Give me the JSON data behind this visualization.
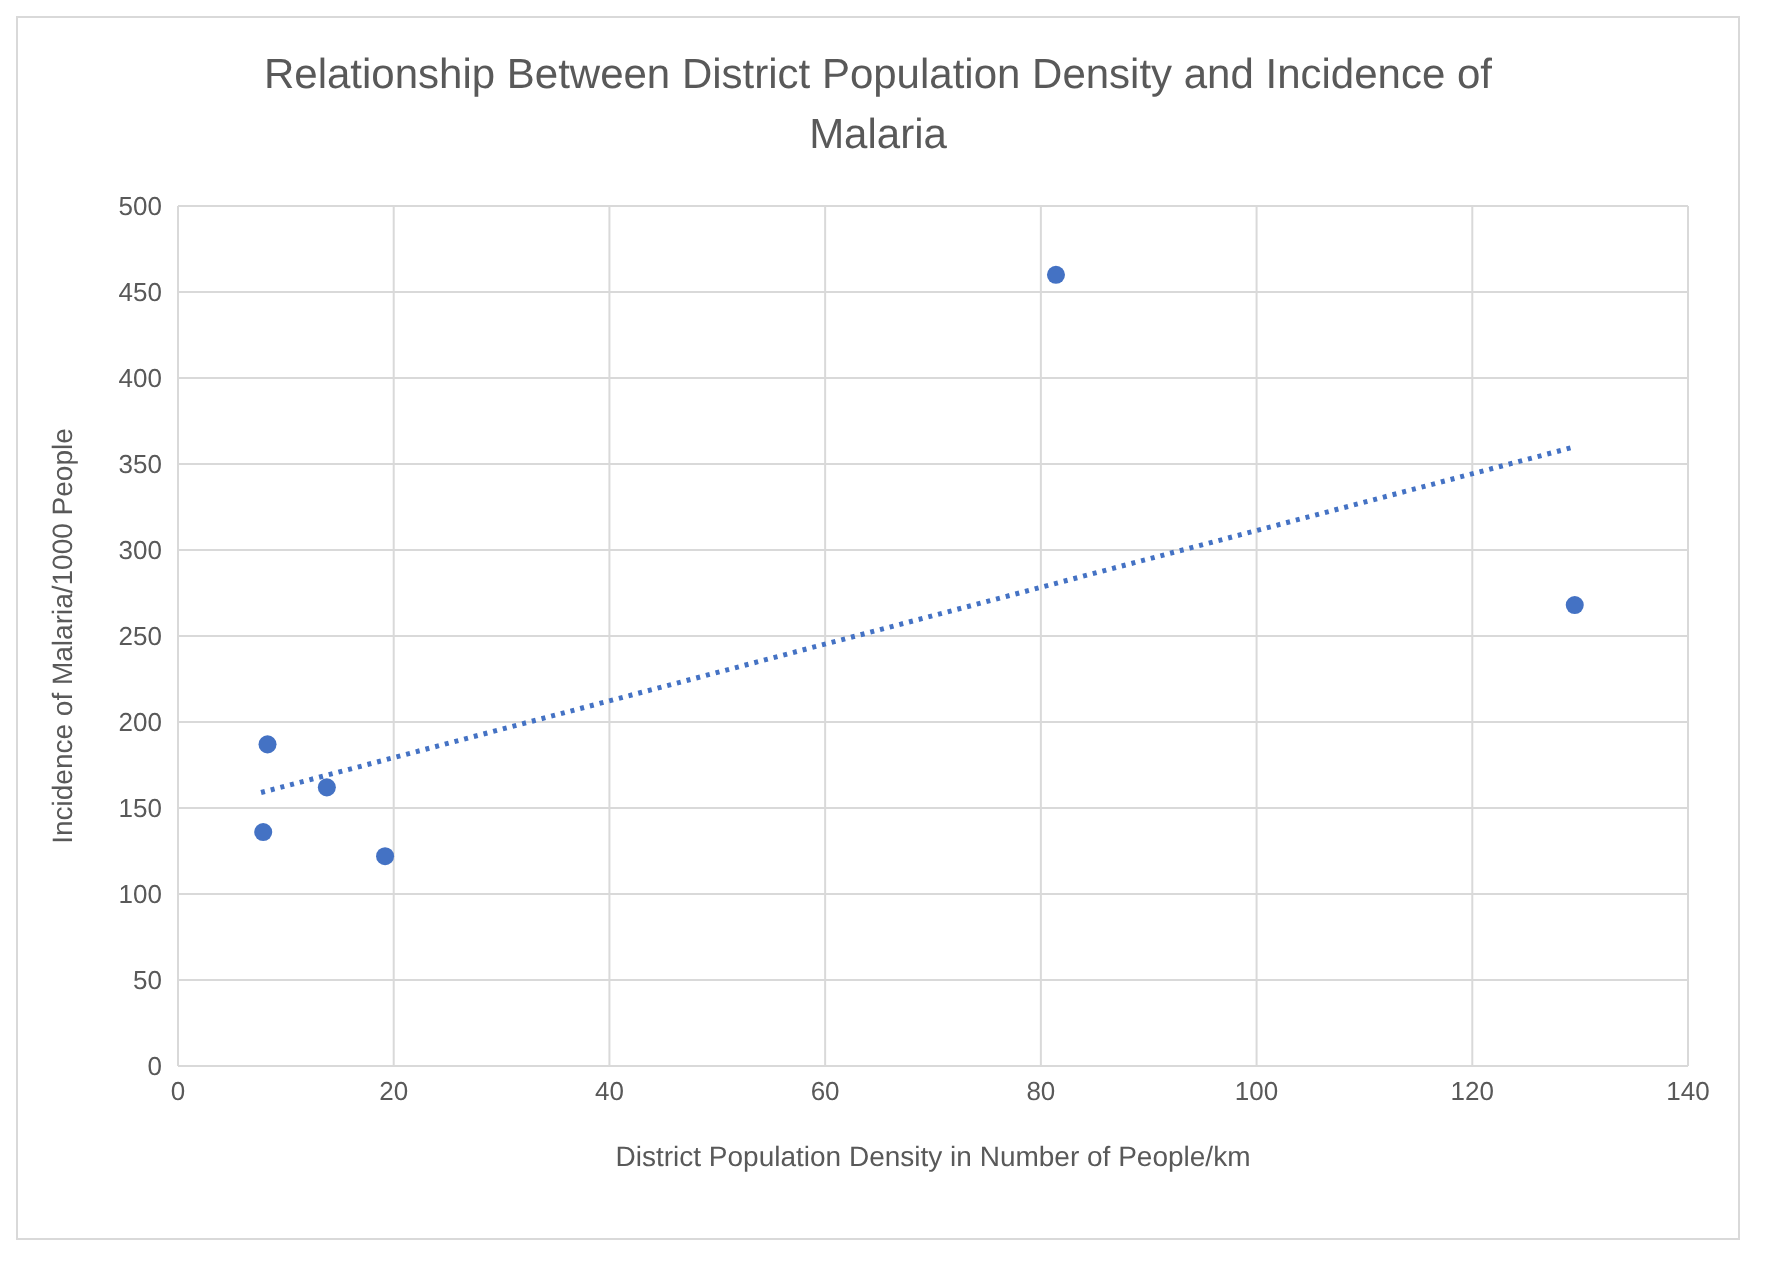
{
  "chart_data": {
    "type": "scatter",
    "title": "Relationship Between District Population Density and Incidence of Malaria",
    "xlabel": "District Population Density in Number of People/km",
    "ylabel": "Incidence of Malaria/1000 People",
    "xlim": [
      0,
      140
    ],
    "xticks": [
      0,
      20,
      40,
      60,
      80,
      100,
      120,
      140
    ],
    "ylim": [
      0,
      500
    ],
    "yticks": [
      0,
      50,
      100,
      150,
      200,
      250,
      300,
      350,
      400,
      450,
      500
    ],
    "grid": true,
    "marker": "circle",
    "series": [
      {
        "type": "scatter",
        "color": "#4472c4",
        "x": [
          7.9,
          8.3,
          13.8,
          19.2,
          81.4,
          129.5
        ],
        "values": [
          136,
          187,
          162,
          122,
          460,
          268
        ]
      },
      {
        "type": "line",
        "color": "#4472c4",
        "line_style": "dotted",
        "marker": "none",
        "x": [
          7.7,
          129.5
        ],
        "values": [
          159,
          360
        ]
      }
    ]
  }
}
